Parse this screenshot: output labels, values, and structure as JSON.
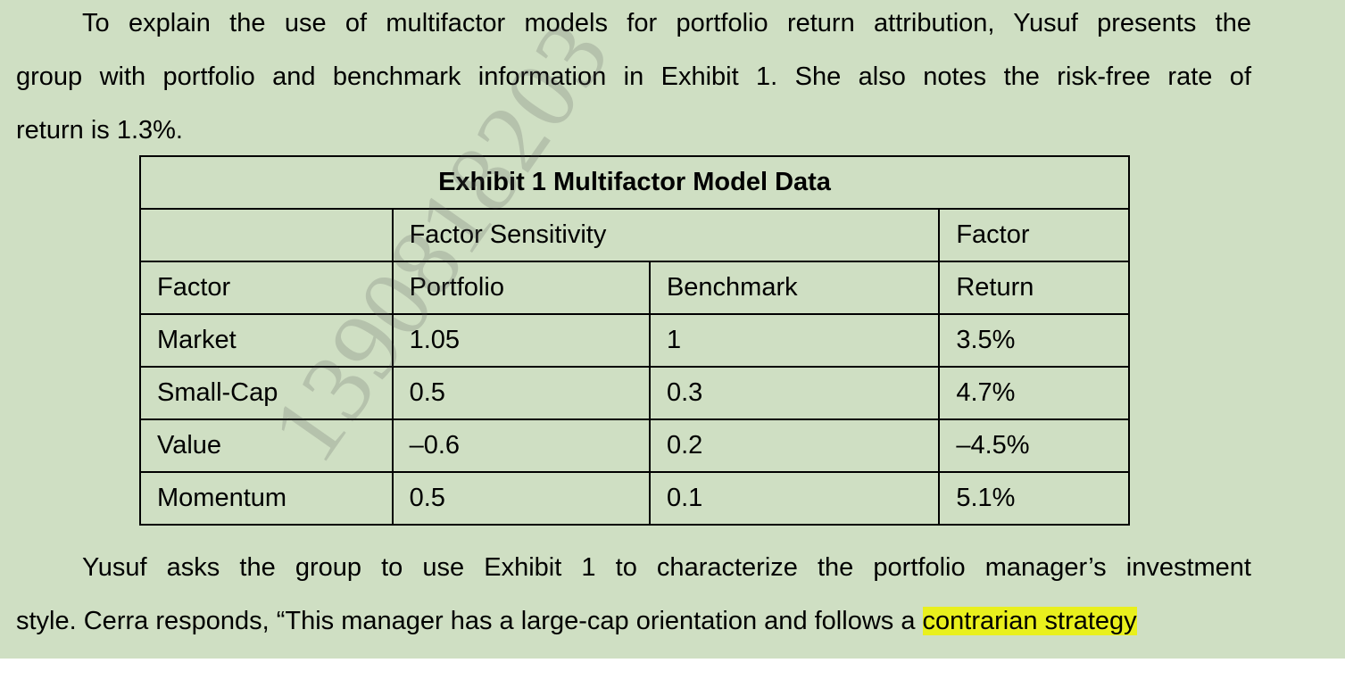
{
  "paragraph1": {
    "line1": "To explain the use of multifactor models for portfolio return attribution, Yusuf presents the",
    "line2": "group with portfolio and benchmark information in Exhibit 1. She also notes the risk-free rate of",
    "line3": "return is 1.3%."
  },
  "exhibit": {
    "title": "Exhibit 1  Multifactor Model Data",
    "header_row1": {
      "sensitivity": "Factor Sensitivity",
      "factor_return_top": "Factor"
    },
    "header_row2": {
      "factor": "Factor",
      "portfolio": "Portfolio",
      "benchmark": "Benchmark",
      "factor_return_bottom": "Return"
    },
    "rows": [
      {
        "factor": "Market",
        "portfolio": "1.05",
        "benchmark": "1",
        "return": "3.5%"
      },
      {
        "factor": "Small-Cap",
        "portfolio": "0.5",
        "benchmark": "0.3",
        "return": "4.7%"
      },
      {
        "factor": "Value",
        "portfolio": "–0.6",
        "benchmark": "0.2",
        "return": "–4.5%"
      },
      {
        "factor": "Momentum",
        "portfolio": "0.5",
        "benchmark": "0.1",
        "return": "5.1%"
      }
    ]
  },
  "paragraph2": {
    "line1": "Yusuf asks the group to use Exhibit 1 to characterize the portfolio manager’s investment",
    "line2_text": "style. Cerra responds, “This manager has a large-cap orientation and follows a ",
    "line2_highlight": "contrarian strategy"
  },
  "watermark": "1390818203",
  "colors": {
    "page_background": "#cfdfc3",
    "highlight": "#e9f01d"
  }
}
